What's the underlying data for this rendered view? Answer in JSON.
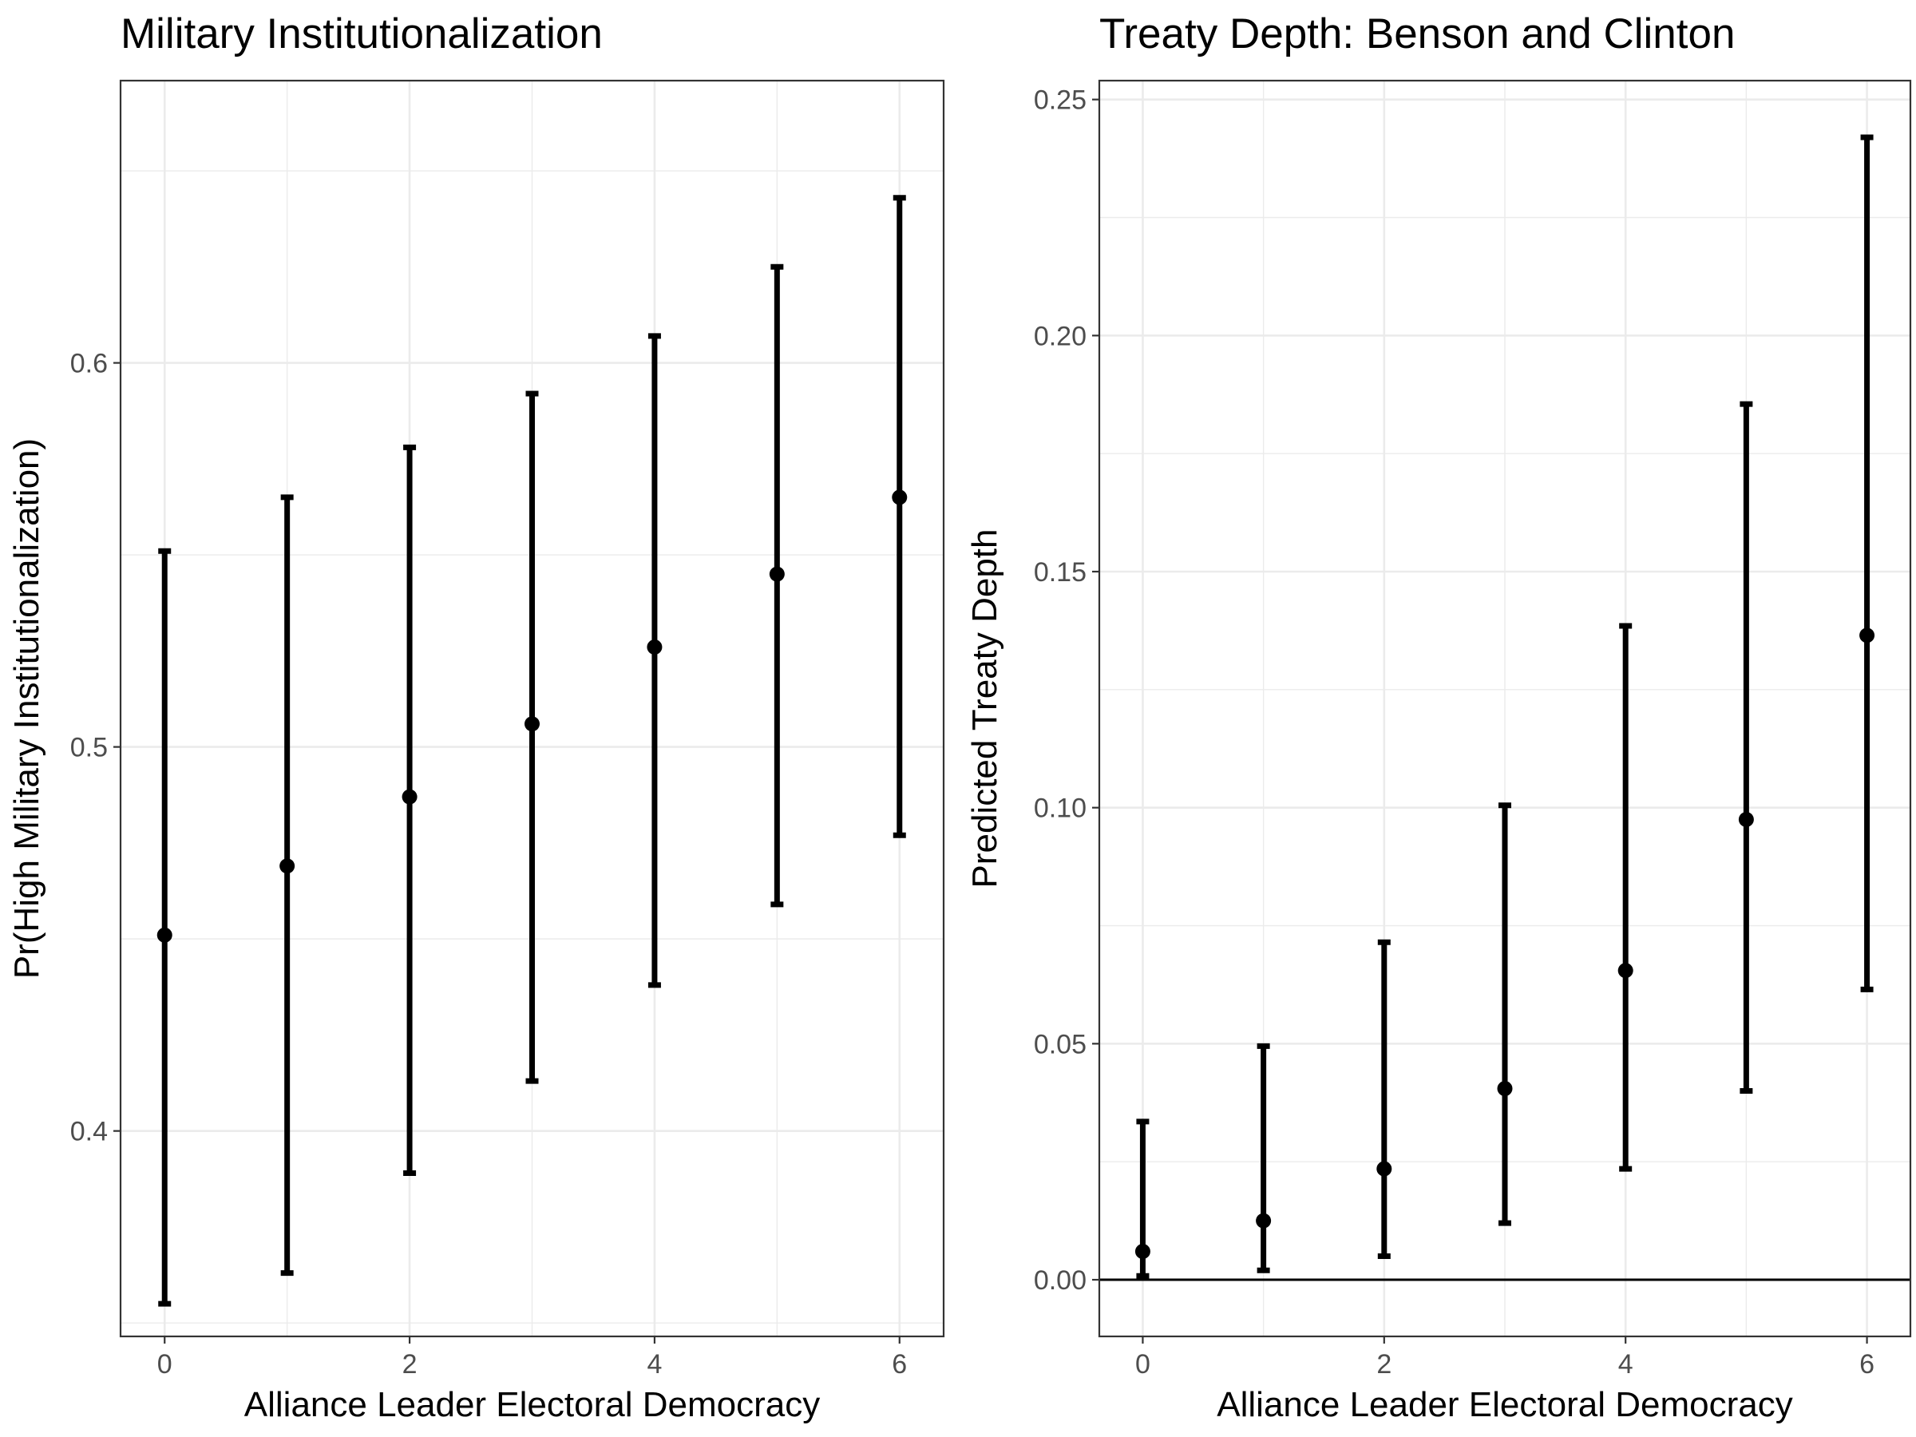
{
  "chart_data": [
    {
      "type": "scatter",
      "geom": "pointrange",
      "title": "Military Institutionalization",
      "xlabel": "Alliance Leader Electoral Democracy",
      "ylabel": "Pr(High Military Institutionalization)",
      "xlim": [
        -0.36,
        6.36
      ],
      "ylim": [
        0.3465,
        0.6735
      ],
      "x_ticks": [
        "0",
        "2",
        "4",
        "6"
      ],
      "y_ticks": [
        "0.4",
        "0.5",
        "0.6"
      ],
      "x_tick_values": [
        0,
        2,
        4,
        6
      ],
      "y_tick_values": [
        0.4,
        0.5,
        0.6
      ],
      "grid": true,
      "reference_line": null,
      "x": [
        0,
        1,
        2,
        3,
        4,
        5,
        6
      ],
      "y": [
        0.451,
        0.469,
        0.487,
        0.506,
        0.526,
        0.545,
        0.565
      ],
      "lower": [
        0.355,
        0.363,
        0.389,
        0.413,
        0.438,
        0.459,
        0.477
      ],
      "upper": [
        0.551,
        0.565,
        0.578,
        0.592,
        0.607,
        0.625,
        0.643
      ]
    },
    {
      "type": "scatter",
      "geom": "pointrange",
      "title": "Treaty Depth: Benson and Clinton",
      "xlabel": "Alliance Leader Electoral Democracy",
      "ylabel": "Predicted Treaty Depth",
      "xlim": [
        -0.36,
        6.36
      ],
      "ylim": [
        -0.012,
        0.254
      ],
      "x_ticks": [
        "0",
        "2",
        "4",
        "6"
      ],
      "y_ticks": [
        "0.00",
        "0.05",
        "0.10",
        "0.15",
        "0.20",
        "0.25"
      ],
      "x_tick_values": [
        0,
        2,
        4,
        6
      ],
      "y_tick_values": [
        0.0,
        0.05,
        0.1,
        0.15,
        0.2,
        0.25
      ],
      "grid": true,
      "reference_line": 0,
      "x": [
        0,
        1,
        2,
        3,
        4,
        5,
        6
      ],
      "y": [
        0.006,
        0.0125,
        0.0235,
        0.0405,
        0.0655,
        0.0975,
        0.1365
      ],
      "lower": [
        0.0008,
        0.002,
        0.005,
        0.012,
        0.0235,
        0.04,
        0.0615
      ],
      "upper": [
        0.0335,
        0.0495,
        0.0715,
        0.1005,
        0.1385,
        0.1855,
        0.242
      ]
    }
  ],
  "style": {
    "point_color": "#000000",
    "tick_label_color": "#4d4d4d",
    "grid_color": "#ebebeb",
    "border_color": "#333333"
  }
}
